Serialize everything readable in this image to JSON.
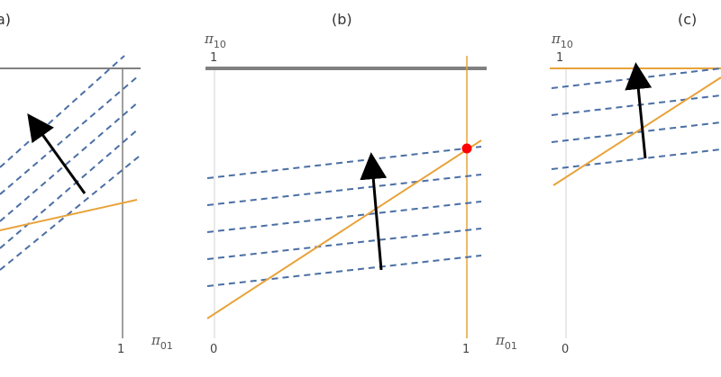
{
  "colors": {
    "iso_line": "#4a6fa5",
    "constraint": "#e8a33a",
    "axis": "#d3d3d3",
    "boundary": "#808080",
    "arrow": "#000000",
    "optimum": "#ff0000"
  },
  "panels": [
    {
      "label": "(a)",
      "label_visible": "a)",
      "x_axis_var": "π",
      "x_axis_sub": "01",
      "x_tick_1": "1"
    },
    {
      "label": "(b)",
      "y_axis_var": "π",
      "y_axis_sub": "10",
      "y_tick_1": "1",
      "x_tick_0": "0",
      "x_tick_1": "1",
      "x_axis_var": "π",
      "x_axis_sub": "01"
    },
    {
      "label": "(c)",
      "y_axis_var": "π",
      "y_axis_sub": "10",
      "y_tick_1": "1",
      "x_tick_0": "0"
    }
  ]
}
